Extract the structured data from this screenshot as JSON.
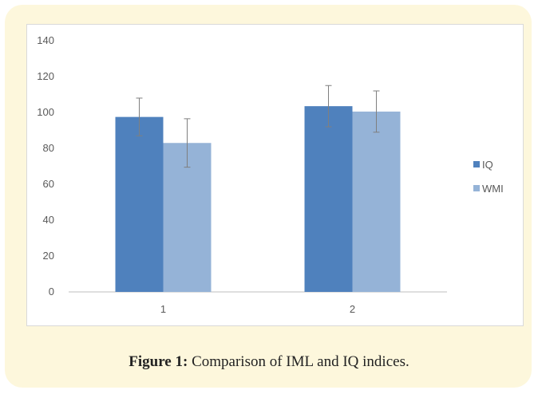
{
  "figure": {
    "caption_label": "Figure 1:",
    "caption_text": " Comparison of IML and IQ indices."
  },
  "colors": {
    "card_background": "#fdf7dc",
    "iq": "#4f81bd",
    "wmi": "#95b3d7",
    "error_bar": "#7f7f7f",
    "axis": "#bfbfbf",
    "tick_text": "#595959"
  },
  "chart_data": {
    "type": "bar",
    "categories": [
      "1",
      "2"
    ],
    "series": [
      {
        "name": "IQ",
        "values": [
          97.5,
          103.5
        ],
        "error": [
          10.5,
          11.5
        ],
        "color": "#4f81bd"
      },
      {
        "name": "WMI",
        "values": [
          83,
          100.5
        ],
        "error": [
          13.5,
          11.5
        ],
        "color": "#95b3d7"
      }
    ],
    "ylim": [
      0,
      140
    ],
    "yticks": [
      0,
      20,
      40,
      60,
      80,
      100,
      120,
      140
    ],
    "grid": false,
    "legend_position": "right",
    "title": "",
    "xlabel": "",
    "ylabel": ""
  }
}
